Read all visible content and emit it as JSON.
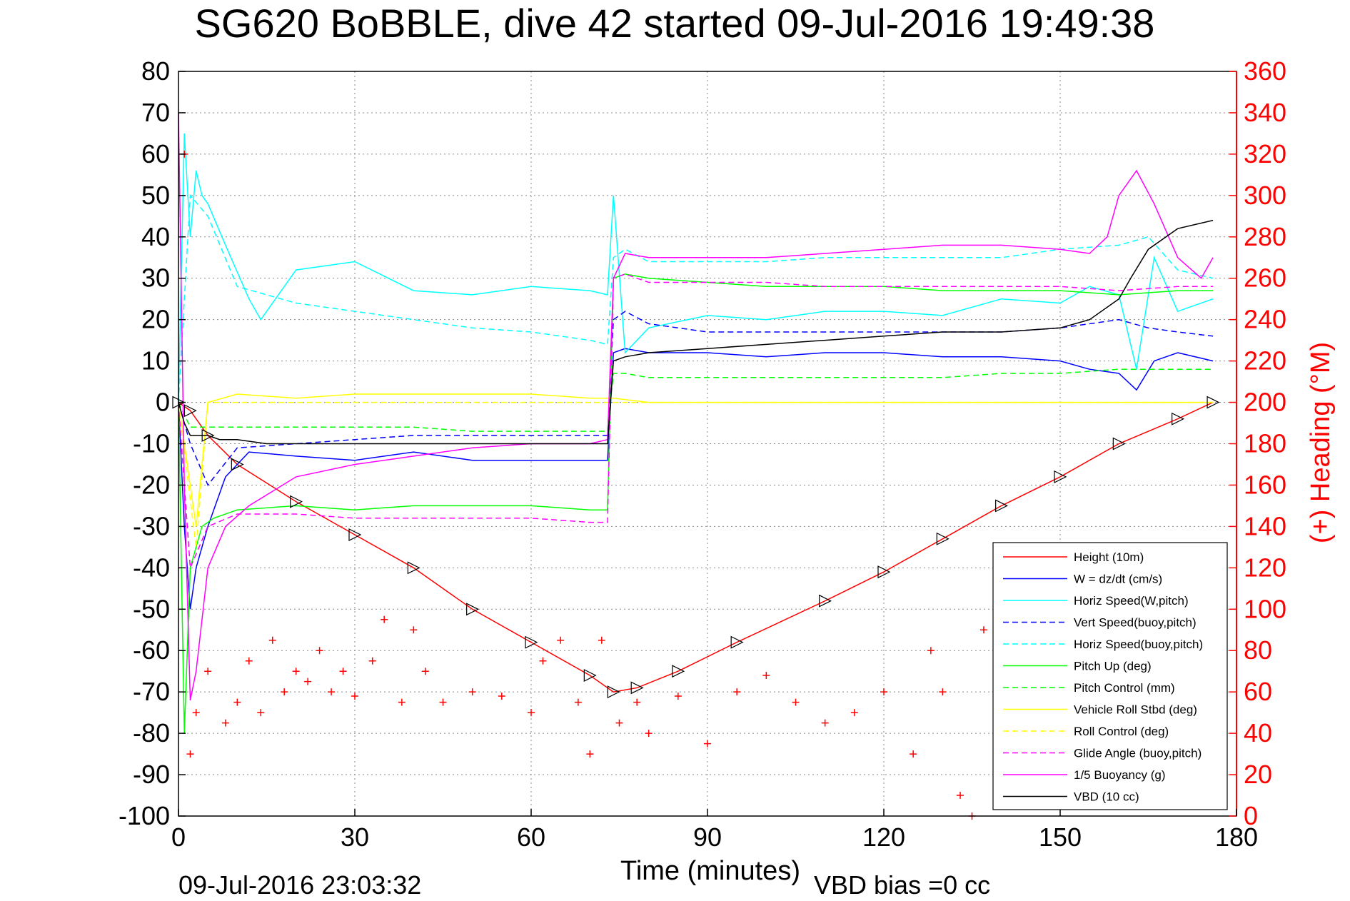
{
  "chart_data": {
    "type": "line",
    "title": "SG620 BoBBLE, dive 42 started 09-Jul-2016 19:49:38",
    "xlabel": "Time (minutes)",
    "ylabel": "",
    "y2label": "(+) Heading (°M)",
    "xlim": [
      0,
      180
    ],
    "ylim": [
      -100,
      80
    ],
    "y2lim": [
      0,
      360
    ],
    "x_ticks": [
      "0",
      "30",
      "60",
      "90",
      "120",
      "150",
      "180"
    ],
    "y_ticks": [
      "80",
      "70",
      "60",
      "50",
      "40",
      "30",
      "20",
      "10",
      "0",
      "-10",
      "-20",
      "-30",
      "-40",
      "-50",
      "-60",
      "-70",
      "-80",
      "-90",
      "-100"
    ],
    "y2_ticks": [
      "360",
      "340",
      "320",
      "300",
      "280",
      "260",
      "240",
      "220",
      "200",
      "180",
      "160",
      "140",
      "120",
      "100",
      "80",
      "60",
      "40",
      "20",
      "0"
    ],
    "grid": true,
    "legend_position": "bottom-right",
    "footer_left": "09-Jul-2016 23:03:32",
    "footer_right": "VBD bias =0 cc",
    "series": [
      {
        "name": "Height (10m)",
        "color": "#ff0000",
        "dash": "solid",
        "x": [
          0,
          2,
          5,
          10,
          20,
          30,
          40,
          50,
          60,
          70,
          74,
          78,
          85,
          95,
          110,
          120,
          130,
          140,
          150,
          160,
          170,
          176
        ],
        "y": [
          0,
          -2,
          -8,
          -15,
          -24,
          -32,
          -40,
          -50,
          -58,
          -66,
          -70,
          -69,
          -65,
          -58,
          -48,
          -41,
          -33,
          -25,
          -18,
          -10,
          -4,
          0
        ]
      },
      {
        "name": "W = dz/dt (cm/s)",
        "color": "#0000ff",
        "dash": "solid",
        "x": [
          0,
          1,
          2,
          3,
          4,
          5,
          8,
          12,
          20,
          30,
          40,
          50,
          60,
          70,
          73,
          74,
          76,
          80,
          90,
          100,
          110,
          120,
          130,
          140,
          150,
          155,
          160,
          163,
          166,
          170,
          176
        ],
        "y": [
          0,
          -30,
          -50,
          -40,
          -35,
          -30,
          -18,
          -12,
          -13,
          -14,
          -12,
          -14,
          -14,
          -14,
          -14,
          12,
          13,
          12,
          12,
          11,
          12,
          12,
          11,
          11,
          10,
          8,
          7,
          3,
          10,
          12,
          10
        ]
      },
      {
        "name": "Horiz Speed(W,pitch)",
        "color": "#00ffff",
        "dash": "solid",
        "x": [
          0,
          1,
          2,
          3,
          4,
          5,
          8,
          12,
          14,
          20,
          30,
          40,
          50,
          60,
          70,
          73,
          74,
          76,
          80,
          90,
          100,
          110,
          120,
          130,
          140,
          150,
          155,
          160,
          163,
          166,
          170,
          176
        ],
        "y": [
          0,
          65,
          40,
          56,
          50,
          48,
          38,
          25,
          20,
          32,
          34,
          27,
          26,
          28,
          27,
          26,
          50,
          12,
          18,
          21,
          20,
          22,
          22,
          21,
          25,
          24,
          28,
          26,
          8,
          35,
          22,
          25
        ]
      },
      {
        "name": "Vert Speed(buoy,pitch)",
        "color": "#0000ff",
        "dash": "dashed",
        "x": [
          0,
          2,
          5,
          10,
          20,
          30,
          40,
          50,
          60,
          70,
          73,
          74,
          76,
          80,
          90,
          100,
          110,
          120,
          130,
          140,
          150,
          160,
          165,
          170,
          176
        ],
        "y": [
          0,
          -10,
          -20,
          -11,
          -10,
          -9,
          -8,
          -8,
          -8,
          -8,
          -8,
          20,
          22,
          19,
          17,
          17,
          17,
          17,
          17,
          17,
          18,
          20,
          18,
          17,
          16
        ]
      },
      {
        "name": "Horiz Speed(buoy,pitch)",
        "color": "#00ffff",
        "dash": "dashed",
        "x": [
          0,
          2,
          5,
          10,
          20,
          30,
          40,
          50,
          60,
          70,
          73,
          74,
          76,
          80,
          90,
          100,
          110,
          120,
          130,
          140,
          150,
          160,
          165,
          170,
          176
        ],
        "y": [
          0,
          50,
          45,
          28,
          24,
          22,
          20,
          18,
          17,
          15,
          14,
          35,
          37,
          34,
          34,
          34,
          35,
          35,
          35,
          35,
          37,
          38,
          40,
          32,
          30
        ]
      },
      {
        "name": "Pitch Up (deg)",
        "color": "#00ff00",
        "dash": "solid",
        "x": [
          0,
          1,
          2,
          4,
          6,
          10,
          20,
          30,
          40,
          50,
          60,
          70,
          73,
          74,
          76,
          80,
          90,
          100,
          110,
          120,
          130,
          140,
          150,
          160,
          170,
          176
        ],
        "y": [
          0,
          -80,
          -40,
          -30,
          -28,
          -26,
          -25,
          -26,
          -25,
          -25,
          -25,
          -26,
          -26,
          30,
          31,
          30,
          29,
          28,
          28,
          28,
          27,
          27,
          27,
          26,
          27,
          27
        ]
      },
      {
        "name": "Pitch Control (mm)",
        "color": "#00ff00",
        "dash": "dashed",
        "x": [
          0,
          2,
          5,
          10,
          20,
          30,
          40,
          50,
          60,
          70,
          73,
          74,
          76,
          80,
          90,
          100,
          110,
          120,
          130,
          140,
          150,
          160,
          170,
          176
        ],
        "y": [
          0,
          -6,
          -6,
          -6,
          -6,
          -6,
          -6,
          -7,
          -7,
          -7,
          -7,
          7,
          7,
          6,
          6,
          6,
          6,
          6,
          6,
          7,
          7,
          8,
          8,
          8
        ]
      },
      {
        "name": "Vehicle Roll Stbd (deg)",
        "color": "#ffff00",
        "dash": "solid",
        "x": [
          0,
          3,
          5,
          10,
          20,
          30,
          40,
          50,
          60,
          70,
          74,
          80,
          90,
          100,
          110,
          120,
          130,
          140,
          150,
          160,
          170,
          176
        ],
        "y": [
          0,
          -30,
          0,
          2,
          1,
          2,
          2,
          2,
          2,
          1,
          1,
          0,
          0,
          0,
          0,
          0,
          0,
          0,
          0,
          0,
          0,
          0
        ]
      },
      {
        "name": "Roll Control (deg)",
        "color": "#ffff00",
        "dash": "dashed",
        "x": [
          0,
          3,
          5,
          10,
          20,
          30,
          40,
          50,
          60,
          70,
          74,
          80,
          90,
          100,
          110,
          120,
          130,
          140,
          150,
          160,
          170,
          176
        ],
        "y": [
          0,
          -35,
          0,
          0,
          0,
          0,
          0,
          0,
          0,
          0,
          0,
          0,
          0,
          0,
          0,
          0,
          0,
          0,
          0,
          0,
          0,
          0
        ]
      },
      {
        "name": "Glide Angle (buoy,pitch)",
        "color": "#ff00ff",
        "dash": "dashed",
        "x": [
          0,
          2,
          5,
          10,
          20,
          30,
          40,
          50,
          60,
          70,
          73,
          74,
          76,
          80,
          90,
          100,
          110,
          120,
          130,
          140,
          150,
          160,
          170,
          176
        ],
        "y": [
          0,
          -40,
          -30,
          -27,
          -27,
          -28,
          -28,
          -28,
          -28,
          -29,
          -29,
          30,
          31,
          29,
          29,
          29,
          28,
          28,
          28,
          28,
          28,
          27,
          28,
          28
        ]
      },
      {
        "name": "1/5 Buoyancy (g)",
        "color": "#ff00ff",
        "dash": "solid",
        "x": [
          0,
          1,
          2,
          3,
          5,
          8,
          12,
          20,
          30,
          40,
          50,
          60,
          70,
          73,
          74,
          76,
          80,
          90,
          100,
          110,
          120,
          130,
          140,
          150,
          155,
          158,
          160,
          163,
          166,
          170,
          174,
          176
        ],
        "y": [
          70,
          -20,
          -72,
          -65,
          -40,
          -30,
          -25,
          -18,
          -15,
          -13,
          -11,
          -10,
          -10,
          -9,
          30,
          36,
          35,
          35,
          35,
          36,
          37,
          38,
          38,
          37,
          36,
          40,
          50,
          56,
          48,
          35,
          30,
          35
        ]
      },
      {
        "name": "VBD (10 cc)",
        "color": "#000000",
        "dash": "solid",
        "x": [
          0,
          1,
          2,
          5,
          7,
          10,
          15,
          20,
          30,
          40,
          50,
          60,
          70,
          73,
          74,
          76,
          80,
          90,
          100,
          110,
          120,
          130,
          140,
          150,
          155,
          160,
          162,
          165,
          170,
          176
        ],
        "y": [
          0,
          -5,
          -8,
          -8,
          -9,
          -9,
          -10,
          -10,
          -10,
          -10,
          -10,
          -10,
          -10,
          -10,
          10,
          11,
          12,
          13,
          14,
          15,
          16,
          17,
          17,
          18,
          20,
          25,
          30,
          37,
          42,
          44
        ]
      },
      {
        "name": "Heading",
        "color": "#ff0000",
        "dash": "markers",
        "axis": "right",
        "x": [
          1,
          2,
          3,
          5,
          8,
          10,
          12,
          14,
          16,
          18,
          20,
          22,
          24,
          26,
          28,
          30,
          33,
          35,
          38,
          40,
          42,
          45,
          50,
          55,
          60,
          62,
          65,
          68,
          70,
          72,
          75,
          78,
          80,
          85,
          90,
          95,
          100,
          105,
          110,
          115,
          120,
          125,
          128,
          130,
          133,
          135,
          137,
          140
        ],
        "y": [
          320,
          30,
          50,
          70,
          45,
          55,
          75,
          50,
          85,
          60,
          70,
          65,
          80,
          60,
          70,
          58,
          75,
          95,
          55,
          90,
          70,
          55,
          60,
          58,
          50,
          75,
          85,
          55,
          30,
          85,
          45,
          55,
          40,
          58,
          35,
          60,
          68,
          55,
          45,
          50,
          60,
          30,
          80,
          60,
          10,
          0,
          90,
          85
        ]
      }
    ],
    "annotations": {
      "height_markers": "triangle markers along Height line"
    }
  }
}
